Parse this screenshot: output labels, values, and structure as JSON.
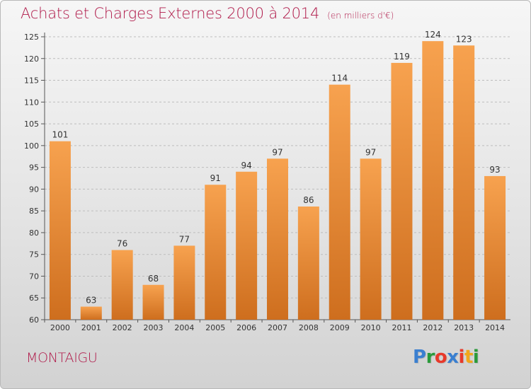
{
  "header": {
    "title": "Achats et Charges Externes 2000 à 2014",
    "subtitle": "(en milliers d'€)"
  },
  "footer": {
    "commune": "MONTAIGU",
    "logo_text": "Proxiti",
    "logo_colors": [
      "#3a7fd0",
      "#2a9a3a",
      "#e8392a",
      "#3a7fd0",
      "#e8392a",
      "#f2a71b",
      "#2a9a3a"
    ]
  },
  "colors": {
    "bar_light": "#f7a24f",
    "bar_dark": "#ce6e1e",
    "title": "#b01a4a"
  },
  "chart_data": {
    "type": "bar",
    "title": "Achats et Charges Externes 2000 à 2014",
    "subtitle": "(en milliers d'€)",
    "xlabel": "",
    "ylabel": "",
    "categories": [
      "2000",
      "2001",
      "2002",
      "2003",
      "2004",
      "2005",
      "2006",
      "2007",
      "2008",
      "2009",
      "2010",
      "2011",
      "2012",
      "2013",
      "2014"
    ],
    "values": [
      101,
      63,
      76,
      68,
      77,
      91,
      94,
      97,
      86,
      114,
      97,
      119,
      124,
      123,
      93
    ],
    "ylim": [
      60,
      125
    ],
    "yticks": [
      60,
      65,
      70,
      75,
      80,
      85,
      90,
      95,
      100,
      105,
      110,
      115,
      120,
      125
    ],
    "grid": true,
    "legend": "none"
  }
}
